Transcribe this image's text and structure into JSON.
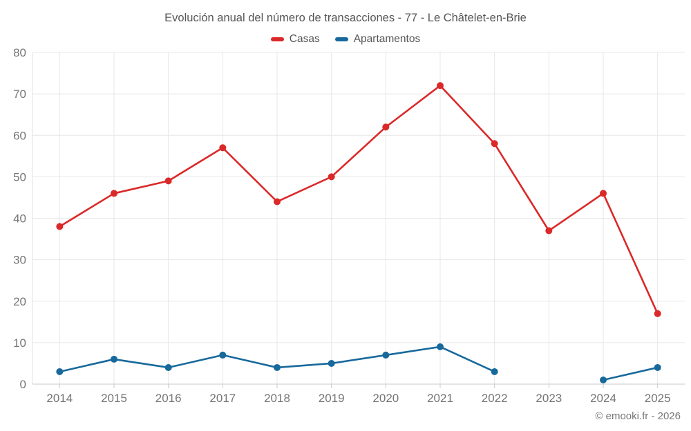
{
  "footer": {
    "credit": "© emooki.fr - 2026"
  },
  "chart_data": {
    "type": "line",
    "title": "Evolución anual del número de transacciones - 77 - Le Châtelet-en-Brie",
    "categories": [
      "2014",
      "2015",
      "2016",
      "2017",
      "2018",
      "2019",
      "2020",
      "2021",
      "2022",
      "2023",
      "2024",
      "2025"
    ],
    "series": [
      {
        "name": "Casas",
        "color": "#db2828",
        "values": [
          38,
          46,
          49,
          57,
          44,
          50,
          62,
          72,
          58,
          37,
          46,
          17
        ]
      },
      {
        "name": "Apartamentos",
        "color": "#17699c",
        "values": [
          3,
          6,
          4,
          7,
          4,
          5,
          7,
          9,
          3,
          null,
          1,
          4
        ]
      }
    ],
    "xlabel": "",
    "ylabel": "",
    "ylim": [
      0,
      80
    ],
    "yticks": [
      0,
      10,
      20,
      30,
      40,
      50,
      60,
      70,
      80
    ],
    "grid": true,
    "legend_position": "top",
    "colors": {
      "grid": "#e7e7e7",
      "axis_left": "#e0e0e0",
      "axis_bottom": "#c9c9c9",
      "tick_label": "#757575"
    }
  }
}
